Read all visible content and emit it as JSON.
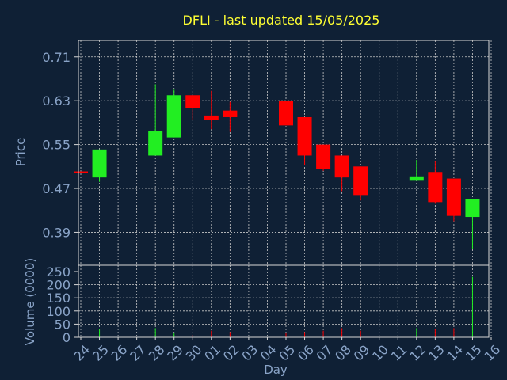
{
  "chart_data": {
    "type": "candlestick",
    "title": "DFLI - last updated 15/05/2025",
    "xlabel": "Day",
    "ylabel_price": "Price",
    "ylabel_volume": "Volume (0000)",
    "x_ticks": [
      "24",
      "25",
      "26",
      "27",
      "28",
      "29",
      "30",
      "01",
      "02",
      "03",
      "04",
      "05",
      "06",
      "07",
      "08",
      "09",
      "10",
      "11",
      "12",
      "13",
      "14",
      "15",
      "16"
    ],
    "price_ticks": [
      "0.71",
      "0.63",
      "0.55",
      "0.47",
      "0.39"
    ],
    "price_tick_values": [
      0.71,
      0.63,
      0.55,
      0.47,
      0.39
    ],
    "price_range": [
      0.33,
      0.74
    ],
    "volume_ticks": [
      "250",
      "200",
      "150",
      "100",
      "50",
      "0"
    ],
    "volume_tick_values": [
      250,
      200,
      150,
      100,
      50,
      0
    ],
    "volume_range": [
      0,
      250
    ],
    "x_range": [
      24,
      46
    ],
    "grid": true,
    "colors": {
      "up": "#22ee22",
      "down": "#ff0000",
      "background": "#0f2035"
    },
    "candles": [
      {
        "day": "24",
        "x": 24,
        "open": 0.501,
        "close": 0.499,
        "high": 0.501,
        "low": 0.499,
        "volume": 1
      },
      {
        "day": "25",
        "x": 25,
        "open": 0.49,
        "close": 0.541,
        "high": 0.541,
        "low": 0.482,
        "volume": 30
      },
      {
        "day": "28",
        "x": 28,
        "open": 0.53,
        "close": 0.575,
        "high": 0.66,
        "low": 0.53,
        "volume": 35
      },
      {
        "day": "29",
        "x": 29,
        "open": 0.563,
        "close": 0.64,
        "high": 0.65,
        "low": 0.563,
        "volume": 15
      },
      {
        "day": "30",
        "x": 30,
        "open": 0.64,
        "close": 0.617,
        "high": 0.64,
        "low": 0.595,
        "volume": 8
      },
      {
        "day": "01",
        "x": 31,
        "open": 0.603,
        "close": 0.595,
        "high": 0.648,
        "low": 0.578,
        "volume": 25
      },
      {
        "day": "02",
        "x": 32,
        "open": 0.612,
        "close": 0.6,
        "high": 0.628,
        "low": 0.573,
        "volume": 20
      },
      {
        "day": "05",
        "x": 35,
        "open": 0.63,
        "close": 0.585,
        "high": 0.63,
        "low": 0.585,
        "volume": 18
      },
      {
        "day": "06",
        "x": 36,
        "open": 0.6,
        "close": 0.53,
        "high": 0.6,
        "low": 0.512,
        "volume": 20
      },
      {
        "day": "07",
        "x": 37,
        "open": 0.55,
        "close": 0.505,
        "high": 0.55,
        "low": 0.502,
        "volume": 25
      },
      {
        "day": "08",
        "x": 38,
        "open": 0.53,
        "close": 0.49,
        "high": 0.53,
        "low": 0.465,
        "volume": 35
      },
      {
        "day": "09",
        "x": 39,
        "open": 0.51,
        "close": 0.458,
        "high": 0.51,
        "low": 0.448,
        "volume": 25
      },
      {
        "day": "12",
        "x": 42,
        "open": 0.484,
        "close": 0.492,
        "high": 0.522,
        "low": 0.484,
        "volume": 35
      },
      {
        "day": "13",
        "x": 43,
        "open": 0.5,
        "close": 0.445,
        "high": 0.52,
        "low": 0.442,
        "volume": 30
      },
      {
        "day": "14",
        "x": 44,
        "open": 0.488,
        "close": 0.42,
        "high": 0.488,
        "low": 0.41,
        "volume": 35
      },
      {
        "day": "15",
        "x": 45,
        "open": 0.418,
        "close": 0.451,
        "high": 0.451,
        "low": 0.36,
        "volume": 230
      }
    ]
  }
}
